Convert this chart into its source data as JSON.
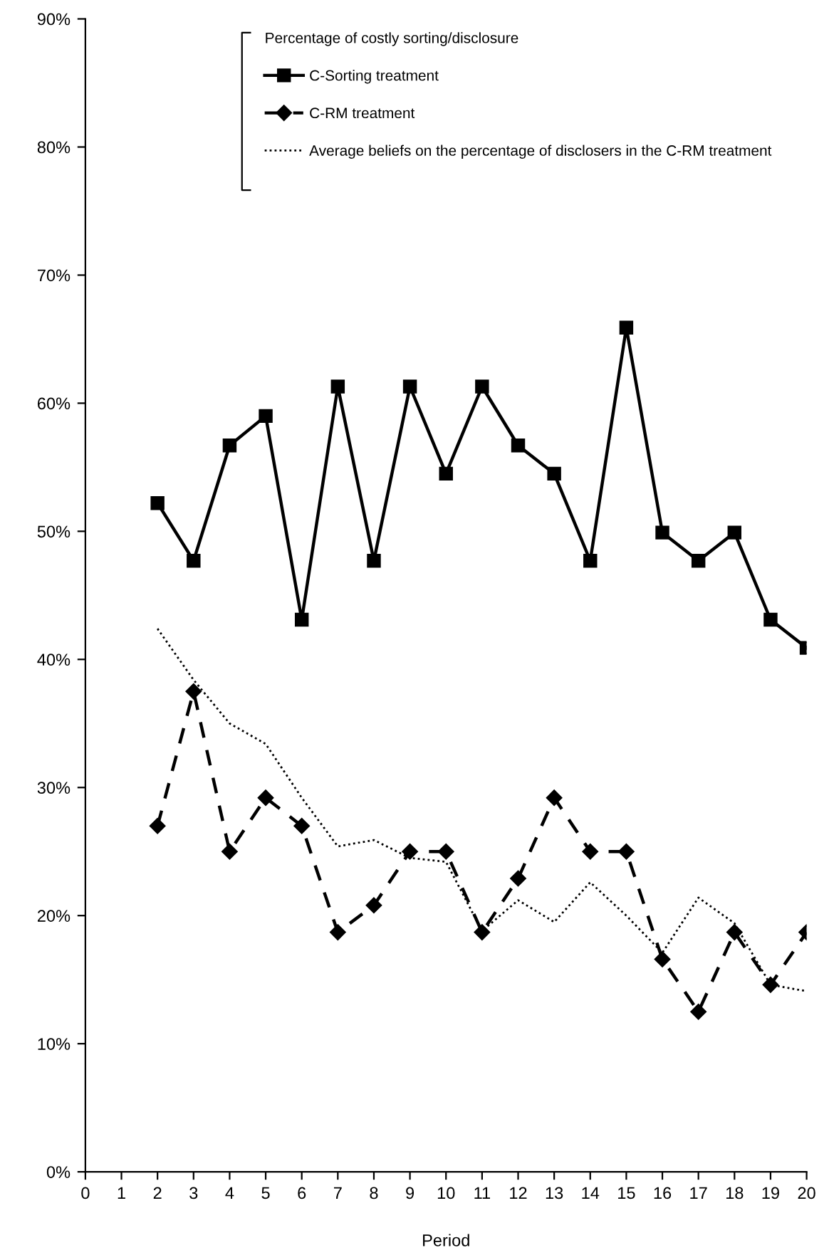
{
  "chart_data": {
    "type": "line",
    "xlabel": "Period",
    "legend_title": "Percentage of costly sorting/disclosure",
    "x": [
      2,
      3,
      4,
      5,
      6,
      7,
      8,
      9,
      10,
      11,
      12,
      13,
      14,
      15,
      16,
      17,
      18,
      19,
      20
    ],
    "series": [
      {
        "name": "C-Sorting treatment",
        "color": "#000000",
        "marker": "square",
        "line_style": "solid",
        "values": [
          52.2,
          47.7,
          56.7,
          59.0,
          43.1,
          61.3,
          47.7,
          61.3,
          54.5,
          61.3,
          56.7,
          54.5,
          47.7,
          65.9,
          49.9,
          47.7,
          49.9,
          43.1,
          40.9
        ]
      },
      {
        "name": "C-RM treatment",
        "color": "#000000",
        "marker": "diamond",
        "line_style": "dashed",
        "values": [
          27.0,
          37.5,
          25.0,
          29.2,
          27.0,
          18.7,
          20.8,
          25.0,
          25.0,
          18.7,
          22.9,
          29.2,
          25.0,
          25.0,
          16.6,
          12.5,
          18.7,
          14.6,
          18.7
        ]
      },
      {
        "name": "Average beliefs on the percentage of disclosers in the C-RM treatment",
        "color": "#000000",
        "marker": "none",
        "line_style": "dotted",
        "values": [
          42.4,
          38.4,
          35.0,
          33.4,
          29.2,
          25.4,
          25.9,
          24.5,
          24.2,
          18.8,
          21.2,
          19.5,
          22.6,
          20.0,
          17.1,
          21.4,
          19.4,
          14.6,
          14.1
        ]
      }
    ],
    "xlim": [
      0,
      20
    ],
    "xticks": [
      0,
      1,
      2,
      3,
      4,
      5,
      6,
      7,
      8,
      9,
      10,
      11,
      12,
      13,
      14,
      15,
      16,
      17,
      18,
      19,
      20
    ],
    "ylim": [
      0,
      90
    ],
    "yticks": [
      {
        "value": 0,
        "label": "0%"
      },
      {
        "value": 10,
        "label": "10%"
      },
      {
        "value": 20,
        "label": "20%"
      },
      {
        "value": 30,
        "label": "30%"
      },
      {
        "value": 40,
        "label": "40%"
      },
      {
        "value": 50,
        "label": "50%"
      },
      {
        "value": 60,
        "label": "60%"
      },
      {
        "value": 70,
        "label": "70%"
      },
      {
        "value": 80,
        "label": "80%"
      },
      {
        "value": 90,
        "label": "90%"
      }
    ],
    "grid": false,
    "legend": "top"
  }
}
